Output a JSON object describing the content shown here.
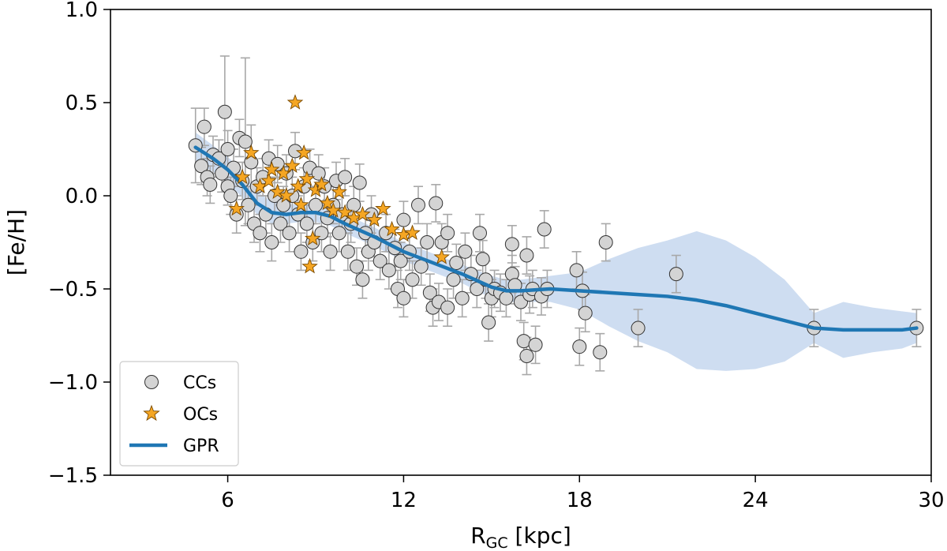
{
  "chart_data": {
    "type": "scatter",
    "xlabel": "R",
    "xlabel_sub": "GC",
    "xlabel_unit": " [kpc]",
    "ylabel": "[Fe/H]",
    "xlim": [
      2,
      30
    ],
    "ylim": [
      -1.5,
      1.0
    ],
    "xticks": [
      6,
      12,
      18,
      24,
      30
    ],
    "xtick_labels": [
      "6",
      "12",
      "18",
      "24",
      "30"
    ],
    "yticks": [
      -1.5,
      -1.0,
      -0.5,
      0.0,
      0.5,
      1.0
    ],
    "ytick_labels": [
      "−1.5",
      "−1.0",
      "−0.5",
      "0.0",
      "0.5",
      "1.0"
    ],
    "grid": false,
    "legend_position": "lower-left",
    "legend": [
      "CCs",
      "OCs",
      "GPR"
    ],
    "colors": {
      "ccs_fill": "#d4d4d4",
      "ccs_edge": "#333333",
      "errorbar": "#a8a8a8",
      "ocs_fill": "#f5a623",
      "ocs_edge": "#7a4a00",
      "gpr_line": "#1f77b4",
      "gpr_band": "#aec7e8"
    },
    "series": [
      {
        "name": "CCs",
        "kind": "scatter-errorbar",
        "points": [
          [
            4.9,
            0.27,
            0.2
          ],
          [
            5.1,
            0.16,
            0.1
          ],
          [
            5.2,
            0.37,
            0.1
          ],
          [
            5.3,
            0.1,
            0.1
          ],
          [
            5.4,
            0.06,
            0.1
          ],
          [
            5.5,
            0.22,
            0.1
          ],
          [
            5.7,
            0.2,
            0.1
          ],
          [
            5.8,
            0.12,
            0.1
          ],
          [
            5.9,
            0.45,
            0.3
          ],
          [
            6.0,
            0.25,
            0.1
          ],
          [
            6.0,
            0.05,
            0.1
          ],
          [
            6.1,
            0.0,
            0.1
          ],
          [
            6.2,
            0.15,
            0.1
          ],
          [
            6.3,
            -0.1,
            0.1
          ],
          [
            6.4,
            0.31,
            0.1
          ],
          [
            6.5,
            0.08,
            0.1
          ],
          [
            6.6,
            0.29,
            0.45
          ],
          [
            6.7,
            -0.05,
            0.1
          ],
          [
            6.8,
            0.18,
            0.2
          ],
          [
            6.9,
            -0.15,
            0.1
          ],
          [
            7.0,
            0.05,
            0.1
          ],
          [
            7.1,
            -0.2,
            0.1
          ],
          [
            7.2,
            0.1,
            0.1
          ],
          [
            7.3,
            -0.1,
            0.1
          ],
          [
            7.4,
            0.2,
            0.1
          ],
          [
            7.5,
            -0.25,
            0.1
          ],
          [
            7.6,
            0.0,
            0.1
          ],
          [
            7.7,
            0.17,
            0.1
          ],
          [
            7.8,
            -0.15,
            0.1
          ],
          [
            7.9,
            -0.05,
            0.1
          ],
          [
            8.0,
            0.12,
            0.1
          ],
          [
            8.1,
            -0.2,
            0.1
          ],
          [
            8.2,
            0.0,
            0.1
          ],
          [
            8.3,
            0.24,
            0.1
          ],
          [
            8.4,
            -0.1,
            0.1
          ],
          [
            8.5,
            -0.3,
            0.1
          ],
          [
            8.6,
            0.05,
            0.1
          ],
          [
            8.7,
            -0.15,
            0.1
          ],
          [
            8.8,
            0.15,
            0.1
          ],
          [
            8.9,
            -0.25,
            0.1
          ],
          [
            9.0,
            -0.05,
            0.1
          ],
          [
            9.1,
            0.12,
            0.1
          ],
          [
            9.2,
            -0.2,
            0.1
          ],
          [
            9.3,
            0.05,
            0.1
          ],
          [
            9.4,
            -0.12,
            0.1
          ],
          [
            9.5,
            -0.3,
            0.1
          ],
          [
            9.6,
            -0.05,
            0.1
          ],
          [
            9.7,
            0.08,
            0.1
          ],
          [
            9.8,
            -0.2,
            0.1
          ],
          [
            9.9,
            -0.1,
            0.1
          ],
          [
            10.0,
            0.1,
            0.1
          ],
          [
            10.1,
            -0.3,
            0.1
          ],
          [
            10.2,
            -0.15,
            0.1
          ],
          [
            10.3,
            -0.05,
            0.1
          ],
          [
            10.4,
            -0.38,
            0.1
          ],
          [
            10.5,
            0.07,
            0.1
          ],
          [
            10.6,
            -0.45,
            0.1
          ],
          [
            10.7,
            -0.2,
            0.1
          ],
          [
            10.8,
            -0.3,
            0.1
          ],
          [
            10.9,
            -0.1,
            0.1
          ],
          [
            11.0,
            -0.25,
            0.1
          ],
          [
            11.2,
            -0.35,
            0.1
          ],
          [
            11.4,
            -0.2,
            0.1
          ],
          [
            11.5,
            -0.4,
            0.1
          ],
          [
            11.7,
            -0.28,
            0.1
          ],
          [
            11.8,
            -0.5,
            0.1
          ],
          [
            11.9,
            -0.35,
            0.1
          ],
          [
            12.0,
            -0.55,
            0.1
          ],
          [
            12.0,
            -0.13,
            0.1
          ],
          [
            12.2,
            -0.3,
            0.1
          ],
          [
            12.3,
            -0.45,
            0.1
          ],
          [
            12.5,
            -0.05,
            0.1
          ],
          [
            12.6,
            -0.38,
            0.1
          ],
          [
            12.8,
            -0.25,
            0.1
          ],
          [
            12.9,
            -0.52,
            0.1
          ],
          [
            13.0,
            -0.6,
            0.1
          ],
          [
            13.1,
            -0.04,
            0.1
          ],
          [
            13.2,
            -0.57,
            0.1
          ],
          [
            13.3,
            -0.25,
            0.1
          ],
          [
            13.5,
            -0.6,
            0.1
          ],
          [
            13.5,
            -0.2,
            0.1
          ],
          [
            13.7,
            -0.45,
            0.1
          ],
          [
            13.8,
            -0.36,
            0.1
          ],
          [
            14.0,
            -0.55,
            0.1
          ],
          [
            14.1,
            -0.3,
            0.1
          ],
          [
            14.3,
            -0.42,
            0.1
          ],
          [
            14.5,
            -0.5,
            0.1
          ],
          [
            14.6,
            -0.2,
            0.1
          ],
          [
            14.7,
            -0.34,
            0.1
          ],
          [
            14.8,
            -0.45,
            0.1
          ],
          [
            14.9,
            -0.68,
            0.1
          ],
          [
            15.0,
            -0.55,
            0.1
          ],
          [
            15.1,
            -0.5,
            0.1
          ],
          [
            15.3,
            -0.52,
            0.1
          ],
          [
            15.5,
            -0.55,
            0.1
          ],
          [
            15.7,
            -0.26,
            0.1
          ],
          [
            15.7,
            -0.42,
            0.1
          ],
          [
            15.8,
            -0.48,
            0.1
          ],
          [
            16.0,
            -0.57,
            0.1
          ],
          [
            16.1,
            -0.78,
            0.1
          ],
          [
            16.2,
            -0.86,
            0.1
          ],
          [
            16.2,
            -0.32,
            0.1
          ],
          [
            16.3,
            -0.53,
            0.1
          ],
          [
            16.4,
            -0.5,
            0.1
          ],
          [
            16.5,
            -0.8,
            0.1
          ],
          [
            16.7,
            -0.54,
            0.1
          ],
          [
            16.8,
            -0.18,
            0.1
          ],
          [
            16.9,
            -0.5,
            0.1
          ],
          [
            17.9,
            -0.4,
            0.1
          ],
          [
            18.0,
            -0.81,
            0.1
          ],
          [
            18.1,
            -0.51,
            0.1
          ],
          [
            18.2,
            -0.63,
            0.1
          ],
          [
            18.7,
            -0.84,
            0.1
          ],
          [
            18.9,
            -0.25,
            0.1
          ],
          [
            20.0,
            -0.71,
            0.1
          ],
          [
            21.3,
            -0.42,
            0.1
          ],
          [
            26.0,
            -0.71,
            0.1
          ],
          [
            29.5,
            -0.71,
            0.1
          ]
        ]
      },
      {
        "name": "OCs",
        "kind": "scatter-star",
        "points": [
          [
            6.3,
            -0.07
          ],
          [
            6.5,
            0.1
          ],
          [
            6.8,
            0.23
          ],
          [
            7.1,
            0.05
          ],
          [
            7.4,
            0.08
          ],
          [
            7.5,
            0.14
          ],
          [
            7.7,
            0.02
          ],
          [
            7.9,
            0.12
          ],
          [
            8.0,
            0.0
          ],
          [
            8.2,
            0.16
          ],
          [
            8.3,
            0.5
          ],
          [
            8.4,
            0.05
          ],
          [
            8.5,
            -0.05
          ],
          [
            8.6,
            0.23
          ],
          [
            8.7,
            0.09
          ],
          [
            8.8,
            -0.38
          ],
          [
            8.9,
            -0.23
          ],
          [
            9.0,
            0.03
          ],
          [
            9.2,
            0.06
          ],
          [
            9.4,
            -0.04
          ],
          [
            9.6,
            -0.08
          ],
          [
            9.8,
            0.02
          ],
          [
            10.0,
            -0.09
          ],
          [
            10.3,
            -0.12
          ],
          [
            10.6,
            -0.1
          ],
          [
            11.0,
            -0.13
          ],
          [
            11.3,
            -0.07
          ],
          [
            11.6,
            -0.18
          ],
          [
            12.0,
            -0.21
          ],
          [
            12.3,
            -0.2
          ],
          [
            13.3,
            -0.33
          ]
        ]
      },
      {
        "name": "GPR",
        "kind": "line-band",
        "points": [
          [
            4.9,
            0.26,
            0.08
          ],
          [
            5.5,
            0.2,
            0.07
          ],
          [
            6.0,
            0.14,
            0.07
          ],
          [
            6.5,
            0.06,
            0.07
          ],
          [
            7.0,
            -0.04,
            0.06
          ],
          [
            7.5,
            -0.09,
            0.06
          ],
          [
            8.0,
            -0.1,
            0.05
          ],
          [
            8.5,
            -0.09,
            0.05
          ],
          [
            9.0,
            -0.09,
            0.05
          ],
          [
            9.5,
            -0.11,
            0.05
          ],
          [
            10.0,
            -0.15,
            0.05
          ],
          [
            11.0,
            -0.22,
            0.05
          ],
          [
            12.0,
            -0.3,
            0.05
          ],
          [
            13.0,
            -0.36,
            0.05
          ],
          [
            14.0,
            -0.42,
            0.05
          ],
          [
            15.0,
            -0.49,
            0.06
          ],
          [
            15.5,
            -0.51,
            0.06
          ],
          [
            16.0,
            -0.51,
            0.06
          ],
          [
            17.0,
            -0.5,
            0.07
          ],
          [
            18.0,
            -0.51,
            0.1
          ],
          [
            19.0,
            -0.52,
            0.18
          ],
          [
            20.0,
            -0.53,
            0.25
          ],
          [
            21.0,
            -0.54,
            0.3
          ],
          [
            22.0,
            -0.56,
            0.37
          ],
          [
            23.0,
            -0.59,
            0.35
          ],
          [
            24.0,
            -0.63,
            0.3
          ],
          [
            25.0,
            -0.67,
            0.22
          ],
          [
            26.0,
            -0.71,
            0.08
          ],
          [
            27.0,
            -0.72,
            0.15
          ],
          [
            28.0,
            -0.72,
            0.12
          ],
          [
            29.0,
            -0.72,
            0.1
          ],
          [
            29.5,
            -0.71,
            0.08
          ]
        ]
      }
    ]
  }
}
